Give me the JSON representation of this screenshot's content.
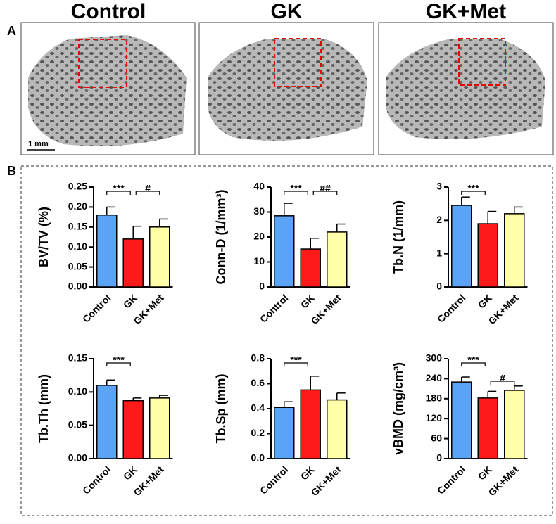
{
  "panel_a": {
    "label": "A",
    "titles": [
      "Control",
      "GK",
      "GK+Met"
    ],
    "scale_bar": "1 mm"
  },
  "panel_b": {
    "label": "B"
  },
  "chart_data": [
    {
      "type": "bar",
      "ylabel": "BV/TV (%)",
      "categories": [
        "Control",
        "GK",
        "GK+Met"
      ],
      "values": [
        0.18,
        0.12,
        0.15
      ],
      "errors": [
        0.02,
        0.032,
        0.02
      ],
      "colors": [
        "#5aa3f5",
        "#ff1a1a",
        "#ffffa8"
      ],
      "ylim": [
        0,
        0.25
      ],
      "yticks": [
        {
          "value": 0,
          "label": "0.00"
        },
        {
          "value": 0.05,
          "label": "0.05"
        },
        {
          "value": 0.1,
          "label": "0.10"
        },
        {
          "value": 0.15,
          "label": "0.15"
        },
        {
          "value": 0.2,
          "label": "0.20"
        },
        {
          "value": 0.25,
          "label": "0.25"
        }
      ],
      "annotations": [
        "***",
        "#"
      ]
    },
    {
      "type": "bar",
      "ylabel": "Conn-D (1/mm³)",
      "categories": [
        "Control",
        "GK",
        "GK+Met"
      ],
      "values": [
        28.5,
        15.2,
        22
      ],
      "errors": [
        5,
        4.3,
        3.2
      ],
      "colors": [
        "#5aa3f5",
        "#ff1a1a",
        "#ffffa8"
      ],
      "ylim": [
        0,
        40
      ],
      "yticks": [
        0,
        10,
        20,
        30,
        40
      ],
      "annotations": [
        "***",
        "##"
      ]
    },
    {
      "type": "bar",
      "ylabel": "Tb.N (1/mm)",
      "categories": [
        "Control",
        "GK",
        "GK+Met"
      ],
      "values": [
        2.45,
        1.9,
        2.2
      ],
      "errors": [
        0.25,
        0.37,
        0.2
      ],
      "colors": [
        "#5aa3f5",
        "#ff1a1a",
        "#ffffa8"
      ],
      "ylim": [
        0,
        3
      ],
      "yticks": [
        0,
        1,
        2,
        3
      ],
      "annotations": [
        "***"
      ]
    },
    {
      "type": "bar",
      "ylabel": "Tb.Th (mm)",
      "categories": [
        "Control",
        "GK",
        "GK+Met"
      ],
      "values": [
        0.11,
        0.087,
        0.091
      ],
      "errors": [
        0.008,
        0.004,
        0.004
      ],
      "colors": [
        "#5aa3f5",
        "#ff1a1a",
        "#ffffa8"
      ],
      "ylim": [
        0,
        0.15
      ],
      "yticks": [
        {
          "value": 0,
          "label": "0.00"
        },
        {
          "value": 0.05,
          "label": "0.05"
        },
        {
          "value": 0.1,
          "label": "0.10"
        },
        {
          "value": 0.15,
          "label": "0.15"
        }
      ],
      "annotations": [
        "***"
      ]
    },
    {
      "type": "bar",
      "ylabel": "Tb.Sp (mm)",
      "categories": [
        "Control",
        "GK",
        "GK+Met"
      ],
      "values": [
        0.41,
        0.55,
        0.47
      ],
      "errors": [
        0.045,
        0.11,
        0.055
      ],
      "colors": [
        "#5aa3f5",
        "#ff1a1a",
        "#ffffa8"
      ],
      "ylim": [
        0,
        0.8
      ],
      "yticks": [
        {
          "value": 0,
          "label": "0.0"
        },
        {
          "value": 0.2,
          "label": "0.2"
        },
        {
          "value": 0.4,
          "label": "0.4"
        },
        {
          "value": 0.6,
          "label": "0.6"
        },
        {
          "value": 0.8,
          "label": "0.8"
        }
      ],
      "annotations": [
        "***"
      ]
    },
    {
      "type": "bar",
      "ylabel": "vBMD (mg/cm³)",
      "categories": [
        "Control",
        "GK",
        "GK+Met"
      ],
      "values": [
        230,
        182,
        205
      ],
      "errors": [
        15,
        20,
        13
      ],
      "colors": [
        "#5aa3f5",
        "#ff1a1a",
        "#ffffa8"
      ],
      "ylim": [
        0,
        300
      ],
      "yticks": [
        0,
        60,
        120,
        180,
        240,
        300
      ],
      "annotations": [
        "***",
        "#"
      ]
    }
  ]
}
